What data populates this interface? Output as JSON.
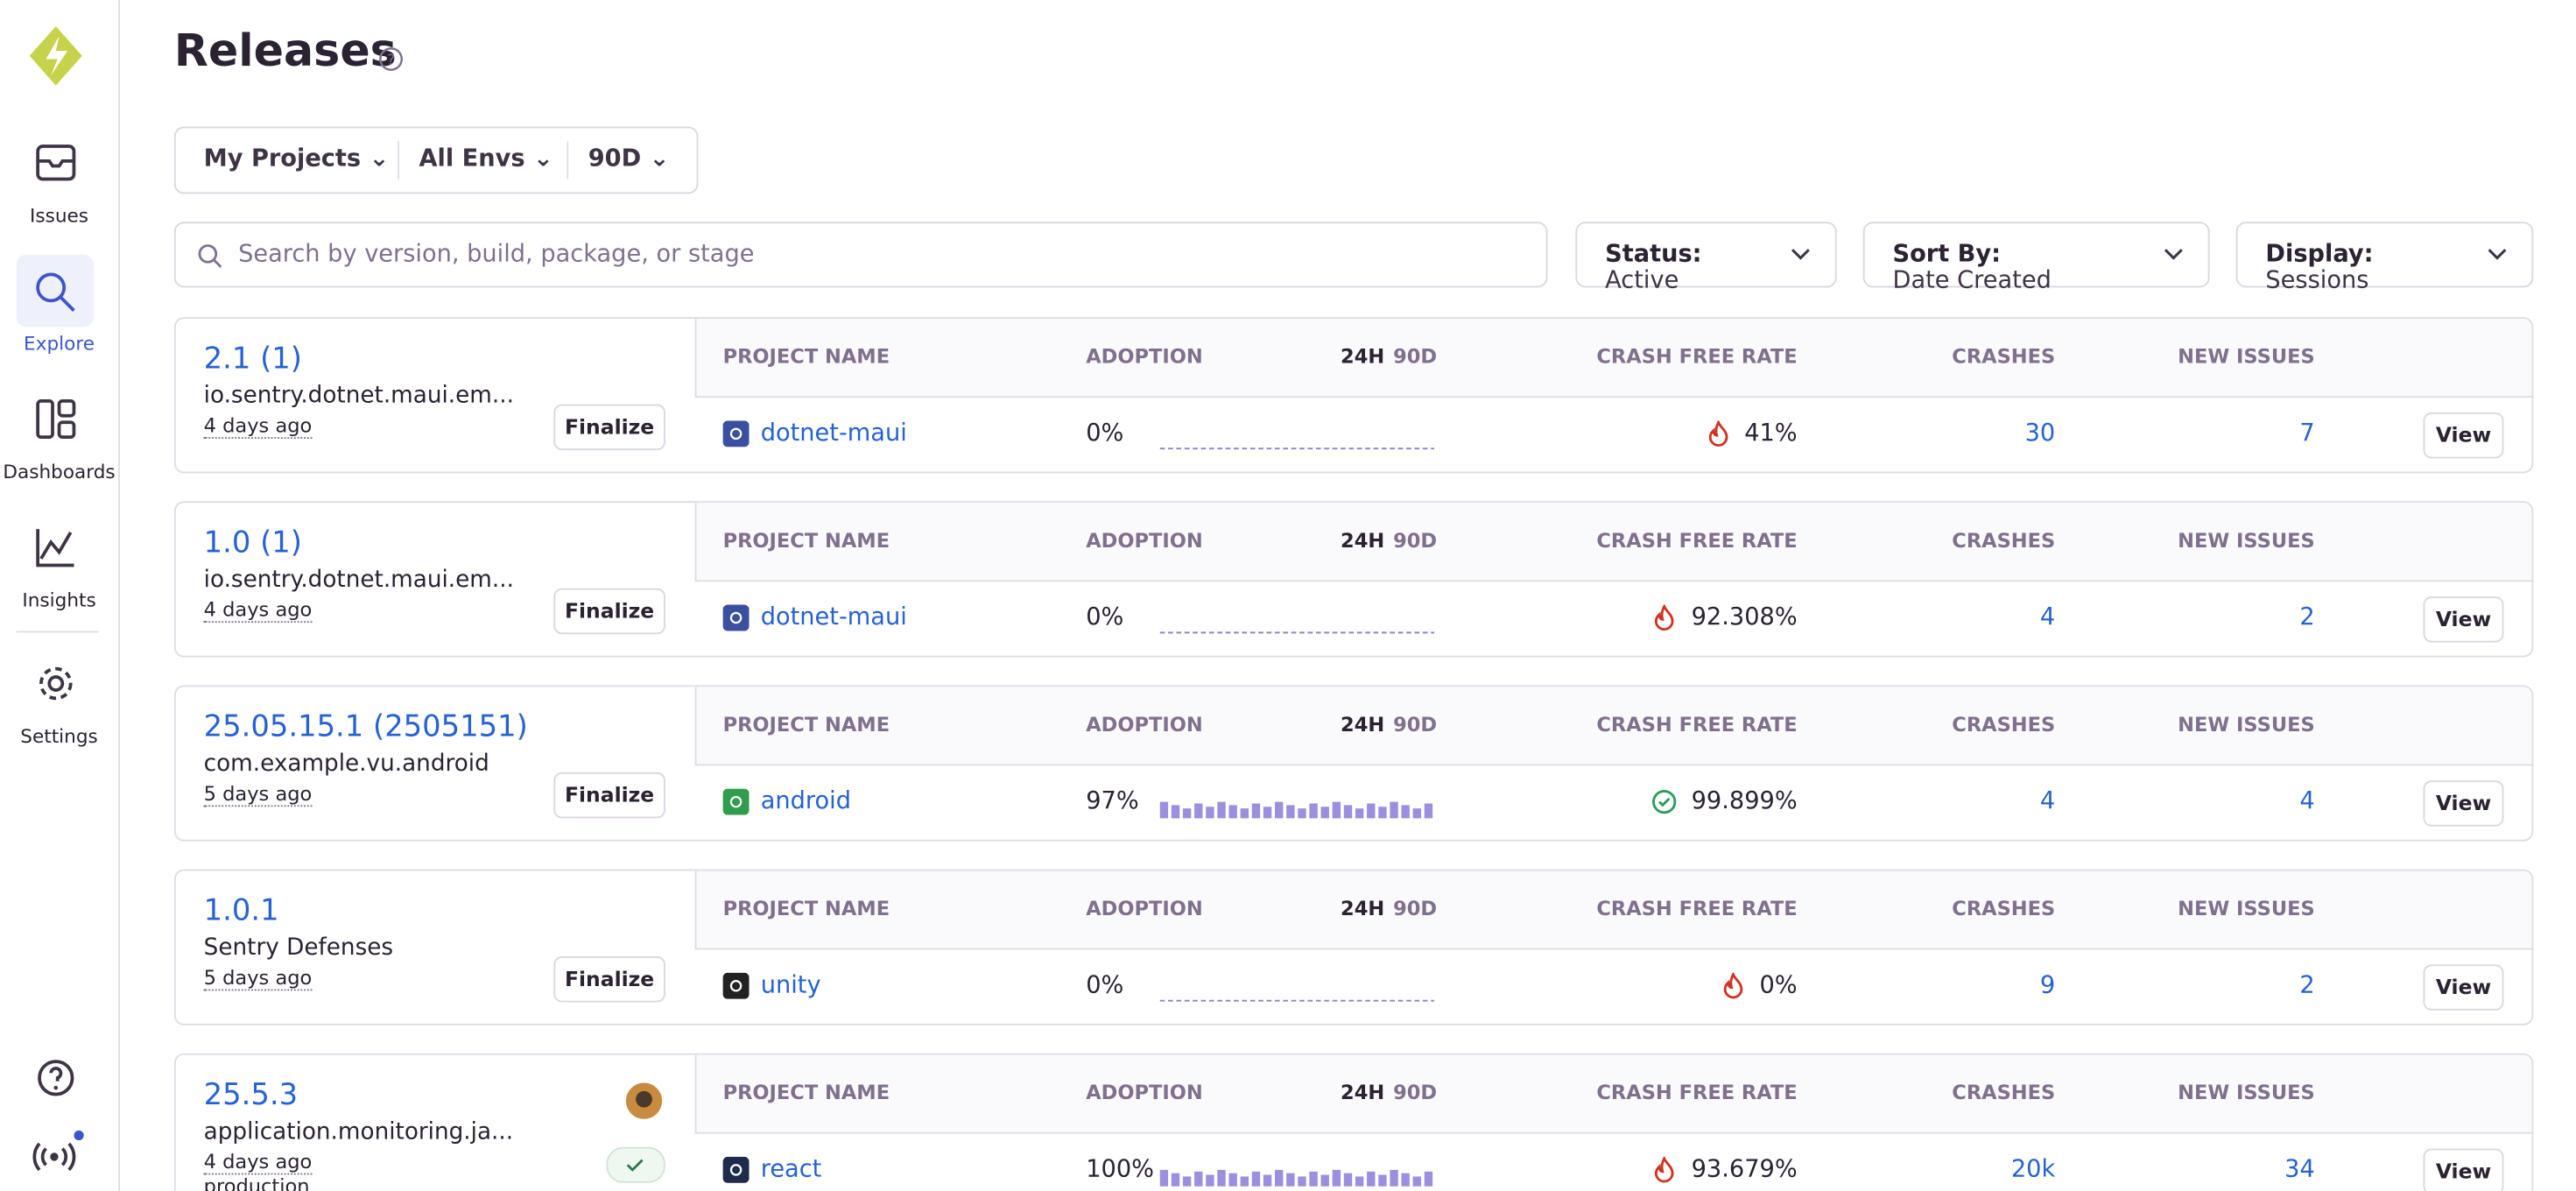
{
  "sidebar": {
    "items": [
      {
        "label": "Issues"
      },
      {
        "label": "Explore"
      },
      {
        "label": "Dashboards"
      },
      {
        "label": "Insights"
      },
      {
        "label": "Settings"
      }
    ]
  },
  "header": {
    "title": "Releases"
  },
  "filters": {
    "projects": "My Projects",
    "envs": "All Envs",
    "period": "90D"
  },
  "search": {
    "placeholder": "Search by version, build, package, or stage"
  },
  "controls": [
    {
      "label": "Status:",
      "value": "Active"
    },
    {
      "label": "Sort By:",
      "value": "Date Created"
    },
    {
      "label": "Display:",
      "value": "Sessions"
    }
  ],
  "columns": {
    "project": "PROJECT NAME",
    "adoption": "ADOPTION",
    "p24": "24H",
    "p90": "90D",
    "crash_free": "CRASH FREE RATE",
    "crashes": "CRASHES",
    "new_issues": "NEW ISSUES"
  },
  "releases": [
    {
      "version": "2.1 (1)",
      "package": "io.sentry.dotnet.maui.em...",
      "age": "4 days ago",
      "action": "Finalize",
      "project": "dotnet-maui",
      "adoption": "0%",
      "sparkline": "flat",
      "icon": "fire",
      "crash_free": "41%",
      "crashes": "30",
      "new_issues": "7",
      "view": "View"
    },
    {
      "version": "1.0 (1)",
      "package": "io.sentry.dotnet.maui.em...",
      "age": "4 days ago",
      "action": "Finalize",
      "project": "dotnet-maui",
      "adoption": "0%",
      "sparkline": "flat",
      "icon": "fire",
      "crash_free": "92.308%",
      "crashes": "4",
      "new_issues": "2",
      "view": "View"
    },
    {
      "version": "25.05.15.1 (2505151)",
      "package": "com.example.vu.android",
      "age": "5 days ago",
      "action": "Finalize",
      "project": "android",
      "adoption": "97%",
      "sparkline": "bars",
      "icon": "check",
      "crash_free": "99.899%",
      "crashes": "4",
      "new_issues": "4",
      "view": "View"
    },
    {
      "version": "1.0.1",
      "package": "Sentry Defenses",
      "age": "5 days ago",
      "action": "Finalize",
      "project": "unity",
      "adoption": "0%",
      "sparkline": "flat",
      "icon": "fire",
      "crash_free": "0%",
      "crashes": "9",
      "new_issues": "2",
      "view": "View"
    },
    {
      "version": "25.5.3",
      "package": "application.monitoring.ja...",
      "age": "4 days ago",
      "env": "production",
      "project": "react",
      "adoption": "100%",
      "sparkline": "bars",
      "icon": "fire",
      "crash_free": "93.679%",
      "crashes": "20k",
      "new_issues": "34",
      "view": "View"
    }
  ]
}
